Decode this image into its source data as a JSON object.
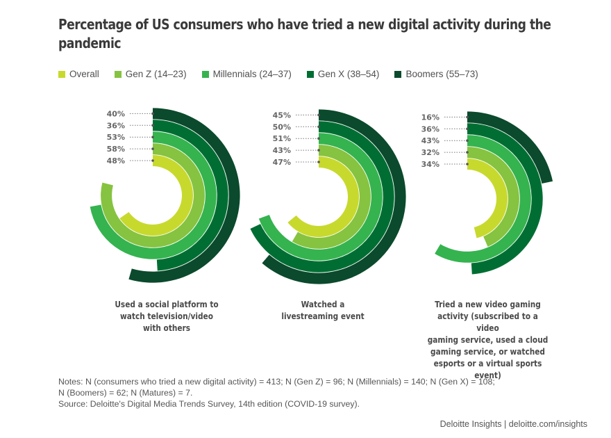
{
  "title": "Percentage of US consumers who have tried a new digital activity during the pandemic",
  "legend": [
    {
      "label": "Overall",
      "color": "#c8d92e"
    },
    {
      "label": "Gen Z (14–23)",
      "color": "#86c340"
    },
    {
      "label": "Millennials (24–37)",
      "color": "#35b34f"
    },
    {
      "label": "Gen X (38–54)",
      "color": "#006e33"
    },
    {
      "label": "Boomers (55–73)",
      "color": "#0b4a2c"
    }
  ],
  "chart_data": {
    "type": "radial-bar",
    "title": "Percentage of US consumers who have tried a new digital activity during the pandemic",
    "series_order": [
      "Overall",
      "Gen Z (14–23)",
      "Millennials (24–37)",
      "Gen X (38–54)",
      "Boomers (55–73)"
    ],
    "unit": "%",
    "charts": [
      {
        "category": "Used a social platform to watch television/video with others",
        "values": {
          "Overall": 48,
          "Gen Z (14–23)": 58,
          "Millennials (24–37)": 53,
          "Gen X (38–54)": 36,
          "Boomers (55–73)": 40
        }
      },
      {
        "category": "Watched a livestreaming event",
        "values": {
          "Overall": 47,
          "Gen Z (14–23)": 43,
          "Millennials (24–37)": 51,
          "Gen X (38–54)": 50,
          "Boomers (55–73)": 45
        }
      },
      {
        "category": "Tried a new video gaming activity (subscribed to a video gaming service, used a cloud gaming service, or watched esports or a virtual sports event)",
        "values": {
          "Overall": 34,
          "Gen Z (14–23)": 32,
          "Millennials (24–37)": 43,
          "Gen X (38–54)": 36,
          "Boomers (55–73)": 16
        }
      }
    ]
  },
  "captions": [
    [
      "Used a social platform to",
      "watch television/video",
      "with others"
    ],
    [
      "Watched a",
      "livestreaming event"
    ],
    [
      "Tried a new video gaming",
      "activity (subscribed to a video",
      "gaming service, used a cloud",
      "gaming service, or watched",
      "esports or a virtual sports event)"
    ]
  ],
  "notes": {
    "line1": "Notes: N (consumers who tried a new digital activity) = 413; N (Gen Z) = 96; N (Millennials) = 140; N (Gen X) = 108;",
    "line2": "N (Boomers) = 62; N (Matures) = 7.",
    "source": "Source: Deloitte's Digital Media Trends Survey, 14th edition (COVID-19 survey)."
  },
  "footer": "Deloitte Insights | deloitte.com/insights"
}
